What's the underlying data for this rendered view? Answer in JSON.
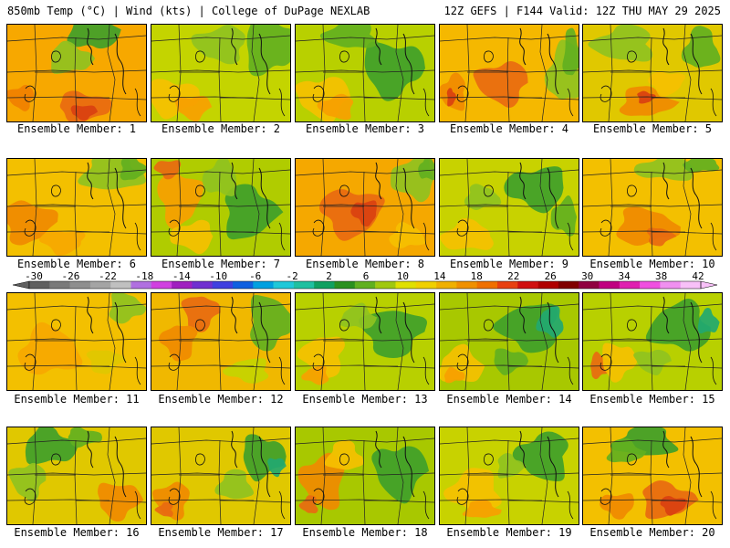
{
  "header": {
    "left": "850mb Temp (°C) | Wind (kts) | College of DuPage NEXLAB",
    "right": "12Z GEFS | F144 Valid: 12Z THU MAY 29 2025"
  },
  "panels": [
    {
      "label": "Ensemble Member: 1",
      "base": "#f7a800",
      "blobs": [
        [
          "#3fa02a",
          0.62,
          0.05,
          0.28,
          0.35
        ],
        [
          "#8fc21f",
          0.45,
          0.35,
          0.25,
          0.25
        ],
        [
          "#e86a10",
          0.55,
          0.85,
          0.3,
          0.25
        ],
        [
          "#d94010",
          0.55,
          0.9,
          0.15,
          0.12
        ],
        [
          "#f08000",
          0.1,
          0.75,
          0.15,
          0.2
        ]
      ]
    },
    {
      "label": "Ensemble Member: 2",
      "base": "#c4d400",
      "blobs": [
        [
          "#62b020",
          0.85,
          0.2,
          0.3,
          0.5
        ],
        [
          "#f5c000",
          0.15,
          0.75,
          0.3,
          0.3
        ],
        [
          "#f7a000",
          0.3,
          0.85,
          0.2,
          0.2
        ],
        [
          "#8fc21f",
          0.5,
          0.2,
          0.3,
          0.3
        ]
      ]
    },
    {
      "label": "Ensemble Member: 3",
      "base": "#b8d000",
      "blobs": [
        [
          "#3fa02a",
          0.7,
          0.45,
          0.35,
          0.45
        ],
        [
          "#f5c000",
          0.2,
          0.75,
          0.3,
          0.35
        ],
        [
          "#f7a000",
          0.3,
          0.85,
          0.2,
          0.2
        ],
        [
          "#62b020",
          0.4,
          0.1,
          0.3,
          0.25
        ]
      ]
    },
    {
      "label": "Ensemble Member: 4",
      "base": "#f5b800",
      "blobs": [
        [
          "#e86a10",
          0.45,
          0.6,
          0.3,
          0.35
        ],
        [
          "#f08a00",
          0.1,
          0.7,
          0.15,
          0.3
        ],
        [
          "#8fc21f",
          0.9,
          0.5,
          0.2,
          0.5
        ],
        [
          "#62b020",
          0.95,
          0.3,
          0.1,
          0.4
        ],
        [
          "#d94010",
          0.08,
          0.75,
          0.05,
          0.15
        ]
      ]
    },
    {
      "label": "Ensemble Member: 5",
      "base": "#e0c800",
      "blobs": [
        [
          "#8fc21f",
          0.3,
          0.2,
          0.35,
          0.3
        ],
        [
          "#62b020",
          0.85,
          0.25,
          0.2,
          0.35
        ],
        [
          "#f08a00",
          0.45,
          0.8,
          0.3,
          0.25
        ],
        [
          "#d94010",
          0.45,
          0.75,
          0.1,
          0.1
        ],
        [
          "#f5c000",
          0.6,
          0.6,
          0.2,
          0.2
        ]
      ]
    },
    {
      "label": "Ensemble Member: 6",
      "base": "#f3c000",
      "blobs": [
        [
          "#8fc21f",
          0.75,
          0.15,
          0.35,
          0.3
        ],
        [
          "#62b020",
          0.9,
          0.1,
          0.15,
          0.2
        ],
        [
          "#f08a00",
          0.15,
          0.65,
          0.3,
          0.35
        ],
        [
          "#f7a800",
          0.4,
          0.85,
          0.25,
          0.2
        ]
      ]
    },
    {
      "label": "Ensemble Member: 7",
      "base": "#b0cc00",
      "blobs": [
        [
          "#3fa02a",
          0.7,
          0.55,
          0.3,
          0.45
        ],
        [
          "#f7a000",
          0.2,
          0.4,
          0.25,
          0.45
        ],
        [
          "#e86a10",
          0.12,
          0.1,
          0.15,
          0.15
        ],
        [
          "#f5c000",
          0.3,
          0.8,
          0.25,
          0.25
        ],
        [
          "#8fc21f",
          0.5,
          0.2,
          0.2,
          0.3
        ]
      ]
    },
    {
      "label": "Ensemble Member: 8",
      "base": "#f5a800",
      "blobs": [
        [
          "#e86a10",
          0.4,
          0.55,
          0.35,
          0.4
        ],
        [
          "#d94010",
          0.5,
          0.55,
          0.15,
          0.2
        ],
        [
          "#8fc21f",
          0.85,
          0.2,
          0.25,
          0.35
        ],
        [
          "#62b020",
          0.95,
          0.1,
          0.1,
          0.2
        ],
        [
          "#f5c000",
          0.8,
          0.8,
          0.2,
          0.2
        ]
      ]
    },
    {
      "label": "Ensemble Member: 9",
      "base": "#c8d200",
      "blobs": [
        [
          "#3fa02a",
          0.7,
          0.3,
          0.35,
          0.35
        ],
        [
          "#62b020",
          0.9,
          0.6,
          0.15,
          0.3
        ],
        [
          "#f5c000",
          0.2,
          0.8,
          0.3,
          0.25
        ],
        [
          "#8fc21f",
          0.3,
          0.4,
          0.2,
          0.2
        ]
      ]
    },
    {
      "label": "Ensemble Member: 10",
      "base": "#f3c000",
      "blobs": [
        [
          "#8fc21f",
          0.6,
          0.1,
          0.35,
          0.2
        ],
        [
          "#62b020",
          0.85,
          0.05,
          0.2,
          0.15
        ],
        [
          "#f08a00",
          0.45,
          0.7,
          0.35,
          0.3
        ],
        [
          "#e86a10",
          0.55,
          0.8,
          0.15,
          0.15
        ]
      ]
    },
    {
      "label": "Ensemble Member: 11",
      "base": "#f3c000",
      "blobs": [
        [
          "#f7a800",
          0.3,
          0.6,
          0.35,
          0.4
        ],
        [
          "#8fc21f",
          0.85,
          0.15,
          0.2,
          0.25
        ],
        [
          "#e0c800",
          0.7,
          0.7,
          0.2,
          0.2
        ]
      ]
    },
    {
      "label": "Ensemble Member: 12",
      "base": "#f0b800",
      "blobs": [
        [
          "#62b020",
          0.85,
          0.3,
          0.25,
          0.45
        ],
        [
          "#e86a10",
          0.35,
          0.2,
          0.2,
          0.3
        ],
        [
          "#f08a00",
          0.2,
          0.5,
          0.2,
          0.3
        ],
        [
          "#c4d400",
          0.7,
          0.8,
          0.25,
          0.2
        ]
      ]
    },
    {
      "label": "Ensemble Member: 13",
      "base": "#b8d000",
      "blobs": [
        [
          "#3fa02a",
          0.7,
          0.4,
          0.35,
          0.4
        ],
        [
          "#f5c000",
          0.2,
          0.65,
          0.25,
          0.35
        ],
        [
          "#f7a000",
          0.15,
          0.85,
          0.15,
          0.15
        ],
        [
          "#8fc21f",
          0.45,
          0.25,
          0.2,
          0.2
        ]
      ]
    },
    {
      "label": "Ensemble Member: 14",
      "base": "#a8c800",
      "blobs": [
        [
          "#3fa02a",
          0.65,
          0.35,
          0.35,
          0.4
        ],
        [
          "#22a870",
          0.8,
          0.3,
          0.15,
          0.25
        ],
        [
          "#f5c000",
          0.15,
          0.75,
          0.25,
          0.3
        ],
        [
          "#f7a000",
          0.1,
          0.85,
          0.12,
          0.12
        ],
        [
          "#62b020",
          0.5,
          0.7,
          0.2,
          0.2
        ]
      ]
    },
    {
      "label": "Ensemble Member: 15",
      "base": "#b8d000",
      "blobs": [
        [
          "#3fa02a",
          0.7,
          0.35,
          0.35,
          0.4
        ],
        [
          "#22a870",
          0.9,
          0.3,
          0.12,
          0.2
        ],
        [
          "#e86a10",
          0.12,
          0.75,
          0.12,
          0.2
        ],
        [
          "#f5c000",
          0.25,
          0.7,
          0.2,
          0.3
        ],
        [
          "#8fc21f",
          0.5,
          0.7,
          0.2,
          0.2
        ]
      ]
    },
    {
      "label": "Ensemble Member: 16",
      "base": "#e0c800",
      "blobs": [
        [
          "#3fa02a",
          0.3,
          0.2,
          0.3,
          0.3
        ],
        [
          "#62b020",
          0.55,
          0.1,
          0.2,
          0.15
        ],
        [
          "#f08a00",
          0.8,
          0.75,
          0.25,
          0.3
        ],
        [
          "#8fc21f",
          0.15,
          0.55,
          0.2,
          0.3
        ]
      ]
    },
    {
      "label": "Ensemble Member: 17",
      "base": "#e0c800",
      "blobs": [
        [
          "#3fa02a",
          0.8,
          0.3,
          0.25,
          0.35
        ],
        [
          "#22a870",
          0.9,
          0.4,
          0.1,
          0.15
        ],
        [
          "#f08a00",
          0.15,
          0.75,
          0.2,
          0.3
        ],
        [
          "#e86a10",
          0.1,
          0.85,
          0.1,
          0.12
        ],
        [
          "#8fc21f",
          0.6,
          0.6,
          0.2,
          0.25
        ]
      ]
    },
    {
      "label": "Ensemble Member: 18",
      "base": "#a8c800",
      "blobs": [
        [
          "#3fa02a",
          0.75,
          0.45,
          0.3,
          0.45
        ],
        [
          "#f08a00",
          0.2,
          0.55,
          0.25,
          0.45
        ],
        [
          "#e86a10",
          0.1,
          0.8,
          0.1,
          0.15
        ],
        [
          "#f5c000",
          0.35,
          0.3,
          0.2,
          0.25
        ]
      ]
    },
    {
      "label": "Ensemble Member: 19",
      "base": "#c8d200",
      "blobs": [
        [
          "#3fa02a",
          0.75,
          0.3,
          0.3,
          0.4
        ],
        [
          "#f5c000",
          0.25,
          0.65,
          0.3,
          0.35
        ],
        [
          "#f7a000",
          0.3,
          0.85,
          0.2,
          0.15
        ],
        [
          "#8fc21f",
          0.5,
          0.4,
          0.15,
          0.2
        ]
      ]
    },
    {
      "label": "Ensemble Member: 20",
      "base": "#f3c000",
      "blobs": [
        [
          "#3fa02a",
          0.45,
          0.15,
          0.35,
          0.25
        ],
        [
          "#62b020",
          0.3,
          0.25,
          0.2,
          0.2
        ],
        [
          "#e86a10",
          0.6,
          0.75,
          0.3,
          0.3
        ],
        [
          "#d94010",
          0.65,
          0.8,
          0.15,
          0.15
        ],
        [
          "#f08a00",
          0.25,
          0.8,
          0.2,
          0.2
        ]
      ]
    }
  ],
  "colorbar": {
    "labels": [
      "-30",
      "-26",
      "-22",
      "-18",
      "-14",
      "-10",
      "-6",
      "-2",
      "2",
      "6",
      "10",
      "14",
      "18",
      "22",
      "26",
      "30",
      "34",
      "38",
      "42"
    ],
    "colors": [
      "#606060",
      "#7a7a7a",
      "#8e8e8e",
      "#a4a4a4",
      "#c0c0c0",
      "#b070e0",
      "#d040e0",
      "#a020c0",
      "#7030d0",
      "#4040e0",
      "#1060e0",
      "#00a0e0",
      "#20c8d8",
      "#20c0a0",
      "#10a060",
      "#2a9020",
      "#60b020",
      "#a0c810",
      "#e0e000",
      "#f0d000",
      "#f0b000",
      "#f09000",
      "#f07000",
      "#e84010",
      "#d01010",
      "#b00000",
      "#800000",
      "#900040",
      "#c00080",
      "#e020b0",
      "#f050e0",
      "#f090f0",
      "#f8c0f8"
    ]
  }
}
